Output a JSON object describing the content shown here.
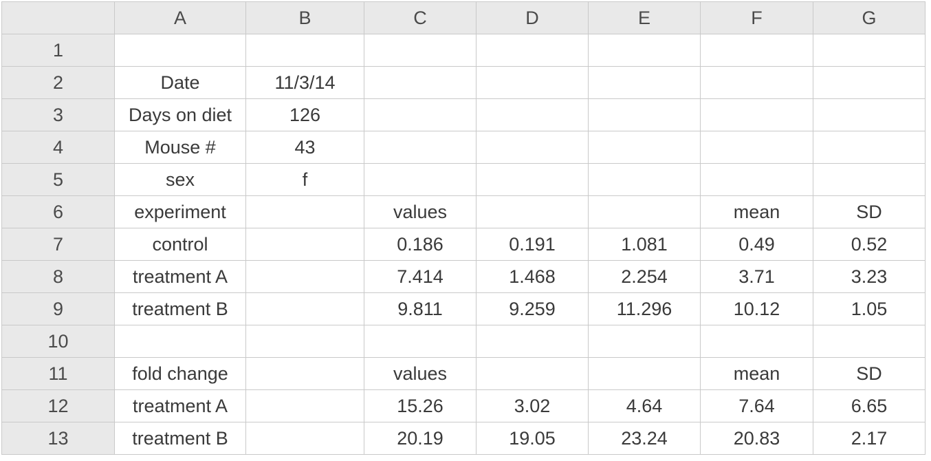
{
  "columns": [
    "A",
    "B",
    "C",
    "D",
    "E",
    "F",
    "G"
  ],
  "rows": [
    {
      "num": "1",
      "cells": [
        "",
        "",
        "",
        "",
        "",
        "",
        ""
      ]
    },
    {
      "num": "2",
      "cells": [
        "Date",
        "11/3/14",
        "",
        "",
        "",
        "",
        ""
      ]
    },
    {
      "num": "3",
      "cells": [
        "Days on diet",
        "126",
        "",
        "",
        "",
        "",
        ""
      ]
    },
    {
      "num": "4",
      "cells": [
        "Mouse #",
        "43",
        "",
        "",
        "",
        "",
        ""
      ]
    },
    {
      "num": "5",
      "cells": [
        "sex",
        "f",
        "",
        "",
        "",
        "",
        ""
      ]
    },
    {
      "num": "6",
      "cells": [
        "experiment",
        "",
        "values",
        "",
        "",
        "mean",
        "SD"
      ]
    },
    {
      "num": "7",
      "cells": [
        "control",
        "",
        "0.186",
        "0.191",
        "1.081",
        "0.49",
        "0.52"
      ]
    },
    {
      "num": "8",
      "cells": [
        "treatment A",
        "",
        "7.414",
        "1.468",
        "2.254",
        "3.71",
        "3.23"
      ]
    },
    {
      "num": "9",
      "cells": [
        "treatment B",
        "",
        "9.811",
        "9.259",
        "11.296",
        "10.12",
        "1.05"
      ]
    },
    {
      "num": "10",
      "cells": [
        "",
        "",
        "",
        "",
        "",
        "",
        ""
      ]
    },
    {
      "num": "11",
      "cells": [
        "fold change",
        "",
        "values",
        "",
        "",
        "mean",
        "SD"
      ]
    },
    {
      "num": "12",
      "cells": [
        "treatment A",
        "",
        "15.26",
        "3.02",
        "4.64",
        "7.64",
        "6.65"
      ]
    },
    {
      "num": "13",
      "cells": [
        "treatment B",
        "",
        "20.19",
        "19.05",
        "23.24",
        "20.83",
        "2.17"
      ]
    }
  ]
}
